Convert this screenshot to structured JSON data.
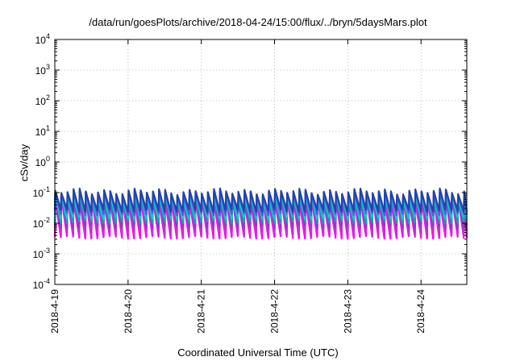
{
  "chart_data": {
    "type": "line",
    "title": "/data/run/goesPlots/archive/2018-04-24/15:00/flux/../bryn/5daysMars.plot",
    "xlabel": "Coordinated Universal Time (UTC)",
    "ylabel": "cSv/day",
    "yscale": "log",
    "ylim_exponents": [
      -4,
      4
    ],
    "ytick_exponents": [
      -4,
      -3,
      -2,
      -1,
      0,
      1,
      2,
      3,
      4
    ],
    "y_tick_base": "10",
    "xlim": [
      "2018-04-19",
      "2018-04-24 15:00"
    ],
    "x_ticks": [
      "2018-4-19",
      "2018-4-20",
      "2018-4-21",
      "2018-4-22",
      "2018-4-23",
      "2018-4-24"
    ],
    "grid": true,
    "sawtooth_period_hours": 2,
    "series": [
      {
        "color": "#ff00ff",
        "peak": 0.06,
        "trough": 0.0035
      },
      {
        "color": "#dd22dd",
        "peak": 0.07,
        "trough": 0.0045
      },
      {
        "color": "#bb33cc",
        "peak": 0.08,
        "trough": 0.006
      },
      {
        "color": "#9933cc",
        "peak": 0.085,
        "trough": 0.008
      },
      {
        "color": "#00aaaa",
        "peak": 0.075,
        "trough": 0.011
      },
      {
        "color": "#11cccc",
        "peak": 0.08,
        "trough": 0.015
      },
      {
        "color": "#4466dd",
        "peak": 0.095,
        "trough": 0.02
      },
      {
        "color": "#2244aa",
        "peak": 0.11,
        "trough": 0.026
      }
    ]
  }
}
